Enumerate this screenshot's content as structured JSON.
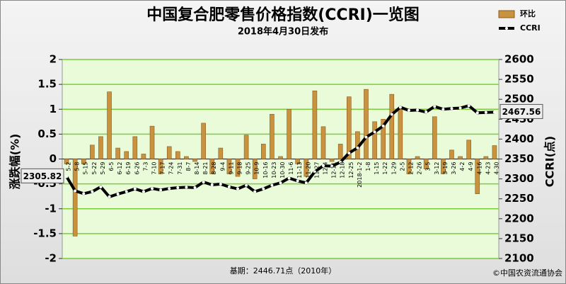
{
  "chart_data": {
    "type": "combo",
    "title": "中国复合肥零售价格指数(CCRI)一览图",
    "subtitle": "2018年4月30日发布",
    "y_label": "涨跌幅(%)",
    "y2_label": "CCRI(点)",
    "footnote": "基期：2446.71点（2010年）",
    "source": "©中国农资流通协会",
    "categories": [
      "5-2",
      "5-8",
      "5-15",
      "5-22",
      "5-29",
      "6-5",
      "6-12",
      "6-19",
      "6-26",
      "7-3",
      "7-10",
      "7-17",
      "7-24",
      "7-31",
      "8-7",
      "8-14",
      "8-21",
      "8-28",
      "9-4",
      "9-11",
      "9-18",
      "9-25",
      "10-9",
      "10-16",
      "10-23",
      "10-30",
      "11-6",
      "11-13",
      "11-20",
      "11-27",
      "12-4",
      "12-11",
      "12-18",
      "12-25",
      "2018-1-2",
      "1-8",
      "1-15",
      "1-22",
      "1-29",
      "2-5",
      "2-12",
      "2-26",
      "3-5",
      "3-12",
      "3-19",
      "3-26",
      "4-2",
      "4-9",
      "4-16",
      "4-23",
      "4-30"
    ],
    "series": [
      {
        "name": "环比",
        "type": "bar",
        "color": "#c9923f",
        "values": [
          -0.1,
          -1.55,
          -0.1,
          0.28,
          0.45,
          1.35,
          0.22,
          0.15,
          0.45,
          0.1,
          0.66,
          -0.3,
          0.25,
          0.15,
          0.05,
          -0.05,
          0.72,
          -0.3,
          0.22,
          -0.3,
          -0.35,
          0.48,
          -0.4,
          0.3,
          0.9,
          0.05,
          1.0,
          -0.1,
          -0.35,
          1.37,
          0.65,
          -0.05,
          0.3,
          1.25,
          0.55,
          1.4,
          0.75,
          0.8,
          1.3,
          1.0,
          -0.3,
          0.05,
          -0.2,
          0.85,
          -0.3,
          0.18,
          0.05,
          0.38,
          -0.7,
          0.05,
          0.27
        ]
      },
      {
        "name": "CCRI",
        "type": "line",
        "axis": "y2",
        "color": "#000000",
        "values": [
          2305.82,
          2270,
          2263,
          2268,
          2280,
          2255,
          2262,
          2268,
          2275,
          2268,
          2276,
          2272,
          2276,
          2278,
          2279,
          2278,
          2292,
          2285,
          2287,
          2280,
          2275,
          2284,
          2268,
          2275,
          2284,
          2290,
          2302,
          2295,
          2290,
          2318,
          2333,
          2332,
          2342,
          2365,
          2378,
          2405,
          2418,
          2433,
          2462,
          2480,
          2472,
          2473,
          2468,
          2482,
          2475,
          2477,
          2478,
          2484,
          2466,
          2467,
          2467.56
        ]
      }
    ],
    "ylim": [
      -2,
      2
    ],
    "yticks": [
      -2,
      -1.5,
      -1,
      -0.5,
      0,
      0.5,
      1,
      1.5,
      2
    ],
    "y2lim": [
      2100,
      2600
    ],
    "y2ticks": [
      2100,
      2150,
      2200,
      2250,
      2300,
      2350,
      2400,
      2450,
      2500,
      2550,
      2600
    ],
    "grid": true,
    "grid_color": "#7ccc3c",
    "legend": "top-right"
  }
}
